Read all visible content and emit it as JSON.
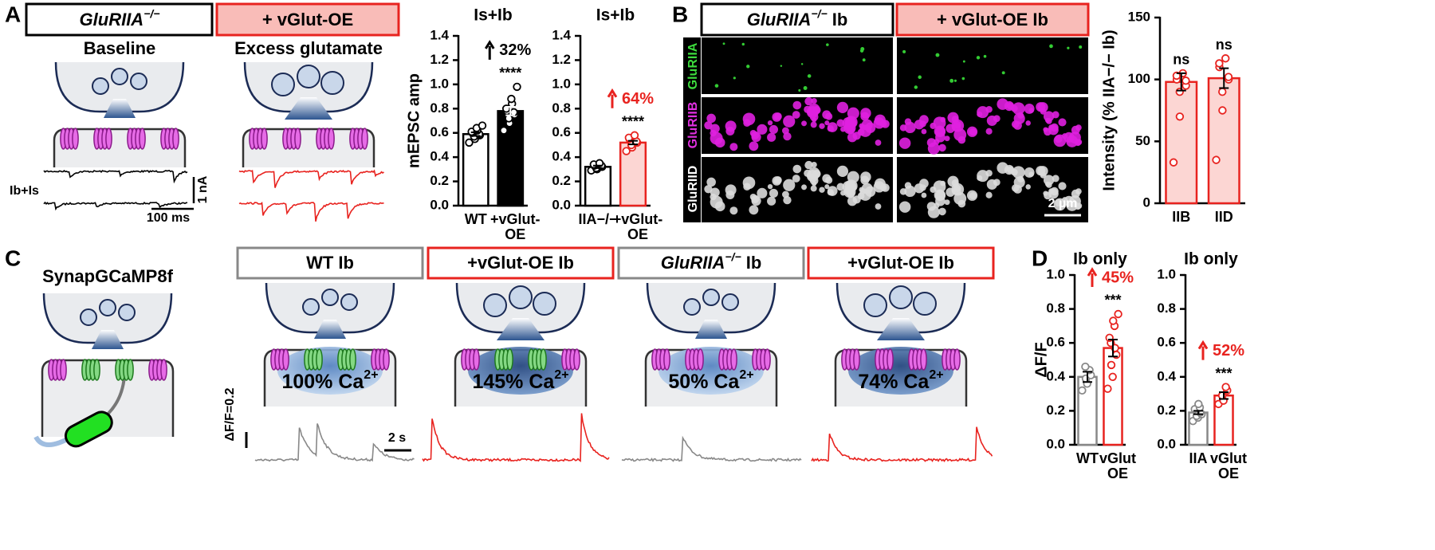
{
  "panel_a": {
    "label": "A",
    "box_left": {
      "text": "GluRIIA",
      "sup": "−/−"
    },
    "box_right": "+ vGlut-OE",
    "caption_left": "Baseline",
    "caption_right": "Excess glutamate",
    "trace_label": "Ib+Is",
    "scale_current": "1 nA",
    "scale_time": "100 ms"
  },
  "panel_b": {
    "label": "B",
    "box_left": {
      "text": "GluRIIA",
      "sup": "−/−",
      "suffix": " Ib"
    },
    "box_right": "+ vGlut-OE Ib",
    "channels": [
      "GluRIIA",
      "GluRIIB",
      "GluRIID"
    ],
    "scale": "2 µm"
  },
  "panel_c": {
    "label": "C",
    "sensor": "SynapGCaMP8f",
    "conditions": [
      {
        "title": "WT Ib",
        "calcium": "100% Ca",
        "calcium_sup": "2+"
      },
      {
        "title": "+vGlut-OE Ib",
        "calcium": "145% Ca",
        "calcium_sup": "2+"
      },
      {
        "title": "GluRIIA",
        "title_sup": "−/−",
        "title_suffix": " Ib",
        "calcium": "50% Ca",
        "calcium_sup": "2+"
      },
      {
        "title": "+vGlut-OE Ib",
        "calcium": "74% Ca",
        "calcium_sup": "2+"
      }
    ],
    "scale_df": "ΔF/F=0.2",
    "scale_time": "2 s"
  },
  "panel_d": {
    "label": "D"
  },
  "chart_data": [
    {
      "type": "bar",
      "title": "Is+Ib",
      "ylabel": "mEPSC amp",
      "categories": [
        [
          "WT"
        ],
        [
          "+vGlut-",
          "OE"
        ]
      ],
      "values": [
        0.59,
        0.78
      ],
      "errors": [
        0.015,
        0.035
      ],
      "points": [
        [
          0.52,
          0.55,
          0.57,
          0.58,
          0.59,
          0.6,
          0.61,
          0.62,
          0.64,
          0.66
        ],
        [
          0.62,
          0.68,
          0.72,
          0.75,
          0.77,
          0.78,
          0.8,
          0.84,
          0.88,
          0.98
        ]
      ],
      "bar_colors": [
        "#ffffff",
        "#000000"
      ],
      "edge_colors": [
        "#000000",
        "#000000"
      ],
      "point_colors": [
        "#000000",
        "#000000"
      ],
      "point_fills": [
        "#ffffff",
        "#ffffff"
      ],
      "stars": [
        null,
        "****"
      ],
      "change": "32%",
      "change_color": "#000000",
      "ylim": [
        0,
        1.4
      ],
      "yticks": [
        {
          "value": 0,
          "label": "0.0"
        },
        0.2,
        0.4,
        0.6,
        0.8,
        {
          "value": 1,
          "label": "1.0"
        },
        1.2,
        1.4
      ]
    },
    {
      "type": "bar",
      "title": "Is+Ib",
      "categories": [
        [
          "IIA−/−"
        ],
        [
          "+vGlut-",
          "OE"
        ]
      ],
      "values": [
        0.32,
        0.52
      ],
      "errors": [
        0.01,
        0.015
      ],
      "points": [
        [
          0.29,
          0.3,
          0.31,
          0.32,
          0.33,
          0.33,
          0.34,
          0.35
        ],
        [
          0.45,
          0.48,
          0.5,
          0.52,
          0.53,
          0.55,
          0.56,
          0.58
        ]
      ],
      "bar_colors": [
        "#ffffff",
        "#fcd6d3"
      ],
      "edge_colors": [
        "#000000",
        "#e8231f"
      ],
      "point_colors": [
        "#000000",
        "#e8231f"
      ],
      "point_fills": [
        "#ffffff",
        "#ffffff"
      ],
      "stars": [
        null,
        "****"
      ],
      "change": "64%",
      "change_color": "#e8231f",
      "ylim": [
        0,
        1.4
      ],
      "yticks": [
        {
          "value": 0,
          "label": "0.0"
        },
        0.2,
        0.4,
        0.6,
        0.8,
        {
          "value": 1,
          "label": "1.0"
        },
        1.2,
        1.4
      ]
    },
    {
      "type": "bar",
      "ylabel": "Intensity (% IIA−/− Ib)",
      "categories": [
        [
          "IIB"
        ],
        [
          "IID"
        ]
      ],
      "values": [
        98,
        101
      ],
      "errors": [
        7,
        8
      ],
      "points": [
        [
          33,
          70,
          90,
          95,
          99,
          100,
          103,
          105
        ],
        [
          35,
          75,
          90,
          100,
          102,
          110,
          113,
          117
        ]
      ],
      "bar_colors": [
        "#fcd6d3",
        "#fcd6d3"
      ],
      "edge_colors": [
        "#e8231f",
        "#e8231f"
      ],
      "point_colors": [
        "#e8231f",
        "#e8231f"
      ],
      "point_fills": [
        "#ffffff",
        "#ffffff"
      ],
      "stars": [
        "ns",
        "ns"
      ],
      "ylim": [
        0,
        150
      ],
      "yticks": [
        0,
        50,
        100,
        150
      ]
    },
    {
      "type": "bar",
      "title": "Ib only",
      "ylabel": "ΔF/F",
      "categories": [
        [
          "WT"
        ],
        [
          "vGlut",
          "OE"
        ]
      ],
      "values": [
        0.4,
        0.57
      ],
      "errors": [
        0.03,
        0.05
      ],
      "points": [
        [
          0.32,
          0.36,
          0.39,
          0.41,
          0.44,
          0.46
        ],
        [
          0.33,
          0.4,
          0.47,
          0.53,
          0.57,
          0.6,
          0.63,
          0.7,
          0.73,
          0.77
        ]
      ],
      "bar_colors": [
        "#ffffff",
        "#ffffff"
      ],
      "edge_colors": [
        "#888888",
        "#e8231f"
      ],
      "point_colors": [
        "#888888",
        "#e8231f"
      ],
      "point_fills": [
        "#ffffff",
        "#ffffff"
      ],
      "stars": [
        null,
        "***"
      ],
      "change": "45%",
      "change_color": "#e8231f",
      "ylim": [
        0,
        1
      ],
      "yticks": [
        {
          "value": 0,
          "label": "0.0"
        },
        0.2,
        0.4,
        0.6,
        0.8,
        {
          "value": 1,
          "label": "1.0"
        }
      ]
    },
    {
      "type": "bar",
      "title": "Ib only",
      "categories": [
        [
          "IIA"
        ],
        [
          "vGlut",
          "OE"
        ]
      ],
      "values": [
        0.19,
        0.29
      ],
      "errors": [
        0.01,
        0.02
      ],
      "points": [
        [
          0.14,
          0.16,
          0.17,
          0.18,
          0.19,
          0.2,
          0.21,
          0.22,
          0.24
        ],
        [
          0.24,
          0.26,
          0.29,
          0.32,
          0.34
        ]
      ],
      "bar_colors": [
        "#ffffff",
        "#ffffff"
      ],
      "edge_colors": [
        "#888888",
        "#e8231f"
      ],
      "point_colors": [
        "#888888",
        "#e8231f"
      ],
      "point_fills": [
        "#ffffff",
        "#ffffff"
      ],
      "stars": [
        null,
        "***"
      ],
      "change": "52%",
      "change_color": "#e8231f",
      "ylim": [
        0,
        1
      ],
      "yticks": [
        {
          "value": 0,
          "label": "0.0"
        },
        0.2,
        0.4,
        0.6,
        0.8,
        {
          "value": 1,
          "label": "1.0"
        }
      ]
    }
  ]
}
